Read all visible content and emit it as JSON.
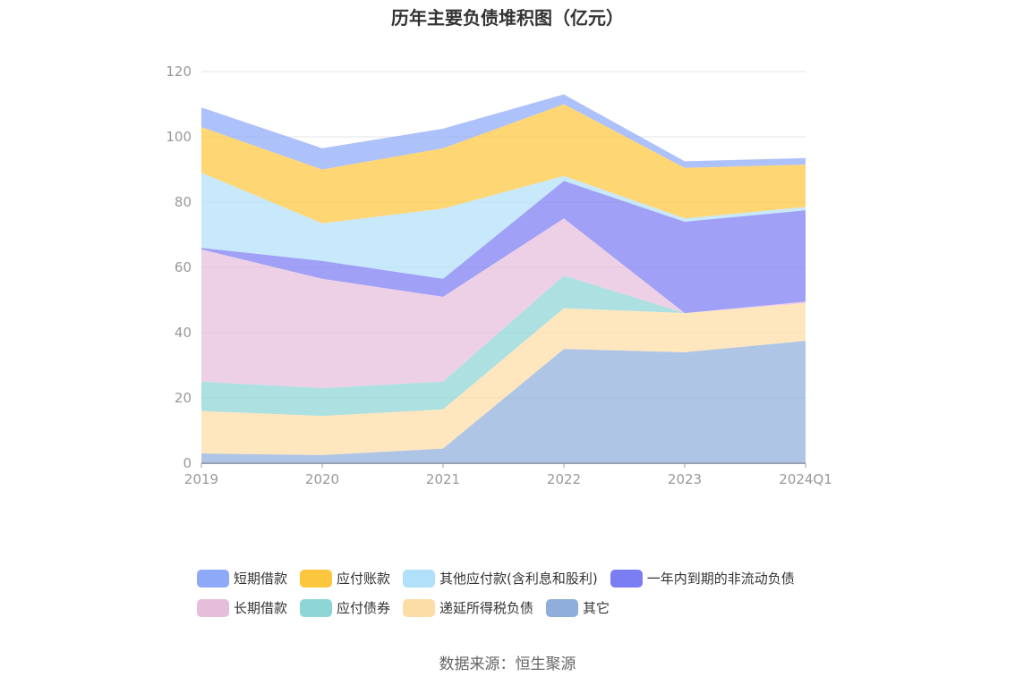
{
  "source": "数据来源：恒生聚源",
  "chart_data": {
    "type": "area",
    "stacked": true,
    "title": "历年主要负债堆积图（亿元）",
    "categories": [
      "2019",
      "2020",
      "2021",
      "2022",
      "2023",
      "2024Q1"
    ],
    "ylim": [
      0,
      120
    ],
    "yticks": [
      0,
      20,
      40,
      60,
      80,
      100,
      120
    ],
    "grid": true,
    "legend_position": "bottom",
    "series": [
      {
        "name": "其它",
        "color": "#8FAEDC",
        "values": [
          3.0,
          2.5,
          4.5,
          35.0,
          34.0,
          37.5
        ]
      },
      {
        "name": "递延所得税负债",
        "color": "#FDDDA6",
        "values": [
          13.0,
          12.0,
          12.0,
          12.5,
          12.0,
          11.5
        ]
      },
      {
        "name": "应付债券",
        "color": "#8ED6D6",
        "values": [
          9.0,
          8.5,
          8.5,
          10.0,
          0.0,
          0.0
        ]
      },
      {
        "name": "长期借款",
        "color": "#E6BEDC",
        "values": [
          40.5,
          33.5,
          26.0,
          17.5,
          0.0,
          0.5
        ]
      },
      {
        "name": "一年内到期的非流动负债",
        "color": "#7B7DF2",
        "values": [
          0.5,
          5.5,
          5.5,
          11.5,
          28.0,
          28.0
        ]
      },
      {
        "name": "其他应付款(含利息和股利)",
        "color": "#B1E1FA",
        "values": [
          23.0,
          11.5,
          21.5,
          1.5,
          1.0,
          1.0
        ]
      },
      {
        "name": "应付账款",
        "color": "#FDC63F",
        "values": [
          14.0,
          16.5,
          18.5,
          22.0,
          15.5,
          13.0
        ]
      },
      {
        "name": "短期借款",
        "color": "#8DA9F8",
        "values": [
          6.0,
          6.5,
          6.0,
          3.0,
          2.0,
          2.0
        ]
      }
    ]
  },
  "legend_rows": [
    [
      {
        "name": "短期借款",
        "color": "#8DA9F8"
      },
      {
        "name": "应付账款",
        "color": "#FDC63F"
      },
      {
        "name": "其他应付款(含利息和股利)",
        "color": "#B1E1FA"
      },
      {
        "name": "一年内到期的非流动负债",
        "color": "#7B7DF2"
      }
    ],
    [
      {
        "name": "长期借款",
        "color": "#E6BEDC"
      },
      {
        "name": "应付债券",
        "color": "#8ED6D6"
      },
      {
        "name": "递延所得税负债",
        "color": "#FDDDA6"
      },
      {
        "name": "其它",
        "color": "#8FAEDC"
      }
    ]
  ]
}
